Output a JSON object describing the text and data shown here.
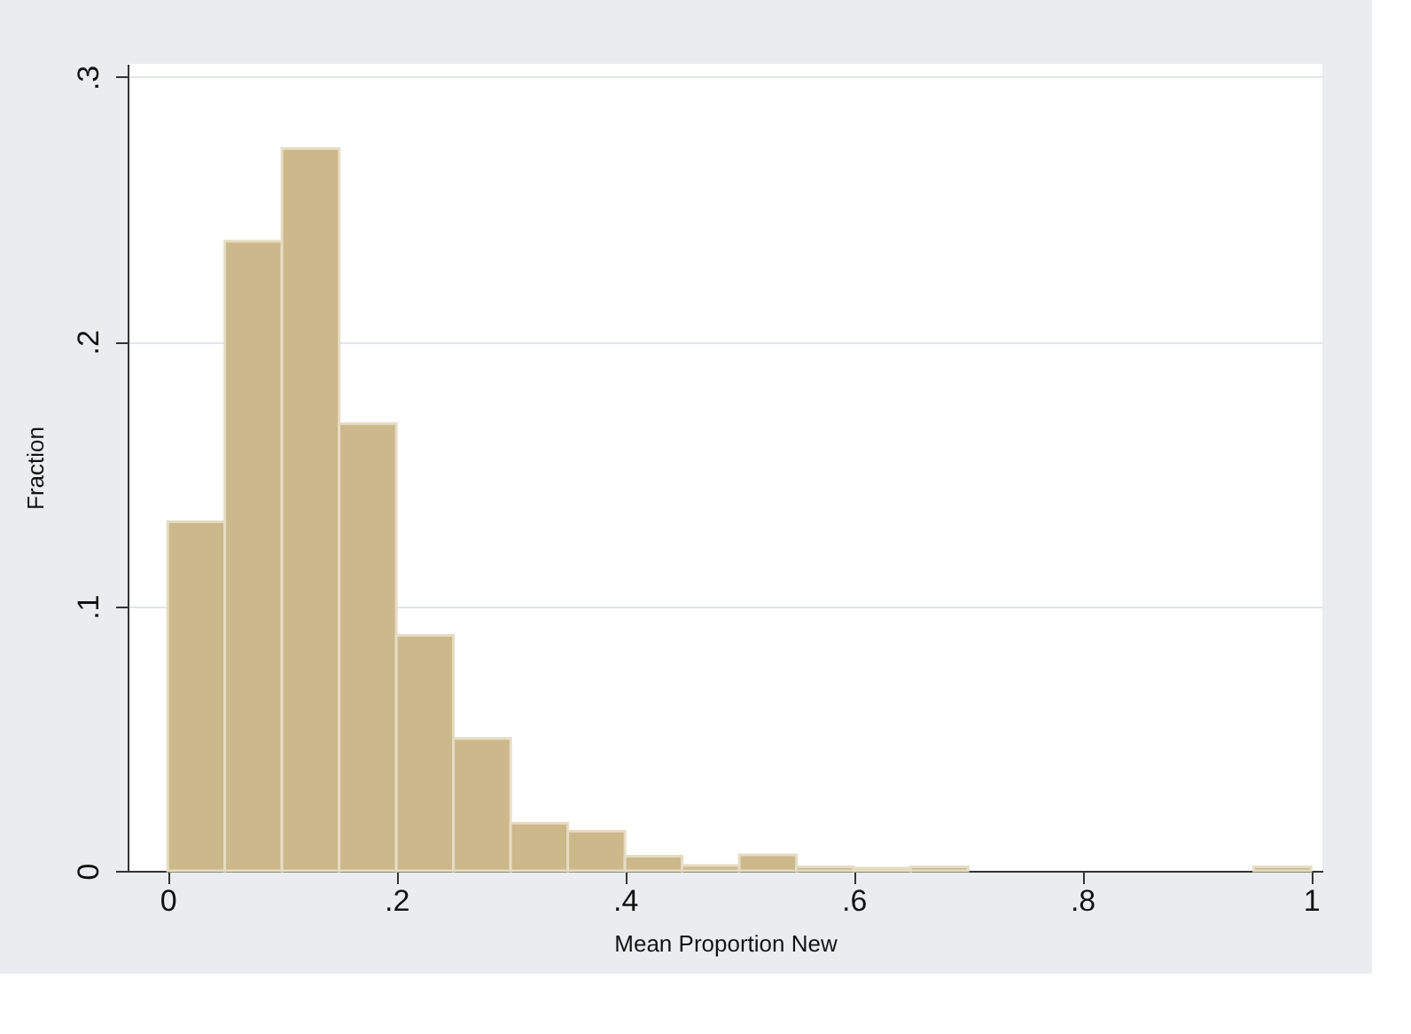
{
  "chart_data": {
    "type": "histogram",
    "xlabel": "Mean Proportion New",
    "ylabel": "Fraction",
    "bins": [
      0,
      0.05,
      0.1,
      0.15,
      0.2,
      0.25,
      0.3,
      0.35,
      0.4,
      0.45,
      0.5,
      0.55,
      0.6,
      0.65,
      0.7,
      0.75,
      0.8,
      0.85,
      0.9,
      0.95,
      1.0
    ],
    "values": [
      0.132,
      0.238,
      0.273,
      0.169,
      0.089,
      0.05,
      0.018,
      0.015,
      0.0055,
      0.002,
      0.006,
      0.0015,
      0.001,
      0.0015,
      0,
      0,
      0,
      0,
      0,
      0.0015
    ],
    "color": "#cbb88b",
    "xlim": [
      -0.035,
      1.01
    ],
    "ylim": [
      0,
      0.305
    ],
    "xticks": [
      0,
      {
        "value": 0.2,
        "label": ".2"
      },
      {
        "value": 0.4,
        "label": ".4"
      },
      {
        "value": 0.6,
        "label": ".6"
      },
      {
        "value": 0.8,
        "label": ".8"
      },
      1
    ],
    "yticks": [
      0,
      {
        "value": 0.1,
        "label": ".1"
      },
      {
        "value": 0.2,
        "label": ".2"
      },
      {
        "value": 0.3,
        "label": ".3"
      }
    ],
    "grid": "y"
  }
}
